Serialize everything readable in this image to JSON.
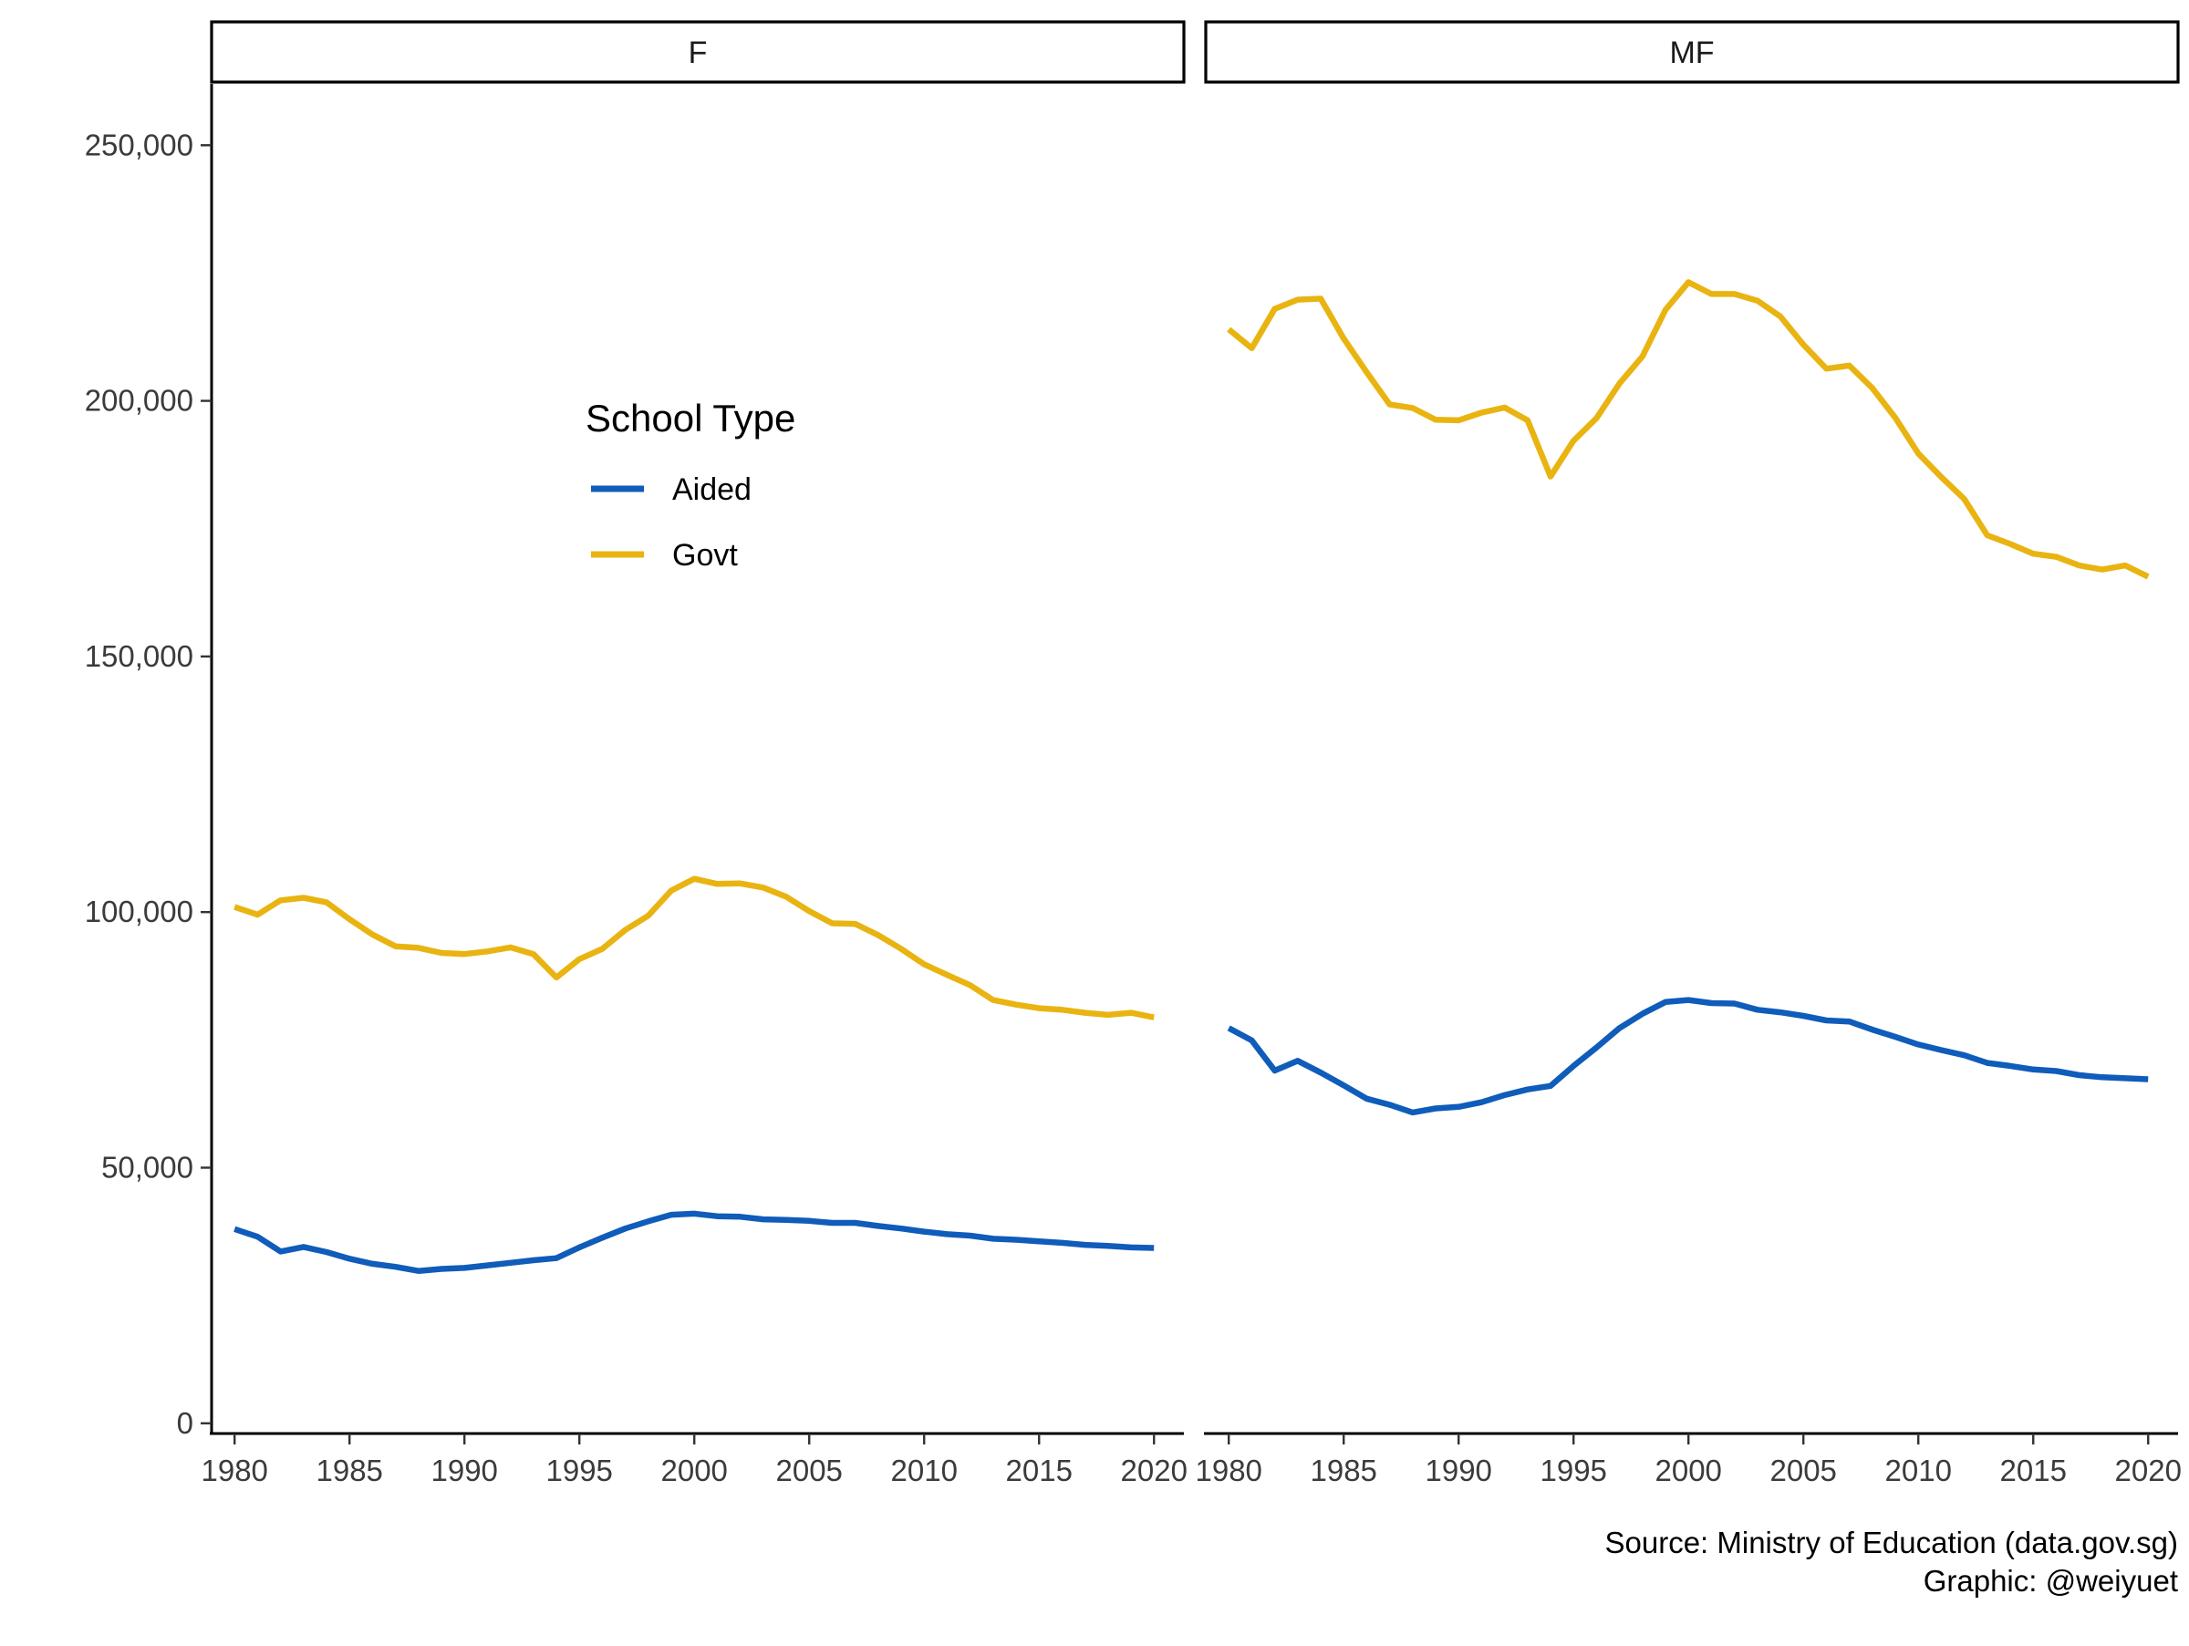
{
  "chart_data": {
    "type": "line",
    "facet_by": "sex",
    "panels": [
      {
        "label": "F",
        "series": [
          {
            "name": "Aided",
            "x": [
              1980,
              1981,
              1982,
              1983,
              1984,
              1985,
              1986,
              1987,
              1988,
              1989,
              1990,
              1991,
              1992,
              1993,
              1994,
              1995,
              1996,
              1997,
              1998,
              1999,
              2000,
              2001,
              2002,
              2003,
              2004,
              2005,
              2006,
              2007,
              2008,
              2009,
              2010,
              2011,
              2012,
              2013,
              2014,
              2015,
              2016,
              2017,
              2018,
              2019,
              2020
            ],
            "values": [
              38000,
              36500,
              33600,
              34500,
              33500,
              32200,
              31200,
              30600,
              29800,
              30200,
              30400,
              30900,
              31400,
              31900,
              32300,
              34400,
              36300,
              38100,
              39500,
              40800,
              41000,
              40500,
              40400,
              39900,
              39800,
              39600,
              39200,
              39200,
              38600,
              38100,
              37500,
              37000,
              36700,
              36100,
              35900,
              35600,
              35300,
              34900,
              34700,
              34400,
              34300
            ]
          },
          {
            "name": "Govt",
            "x": [
              1980,
              1981,
              1982,
              1983,
              1984,
              1985,
              1986,
              1987,
              1988,
              1989,
              1990,
              1991,
              1992,
              1993,
              1994,
              1995,
              1996,
              1997,
              1998,
              1999,
              2000,
              2001,
              2002,
              2003,
              2004,
              2005,
              2006,
              2007,
              2008,
              2009,
              2010,
              2011,
              2012,
              2013,
              2014,
              2015,
              2016,
              2017,
              2018,
              2019,
              2020
            ],
            "values": [
              101000,
              99500,
              102300,
              102800,
              101900,
              98600,
              95600,
              93300,
              93000,
              92000,
              91800,
              92300,
              93100,
              91800,
              87200,
              90800,
              92800,
              96500,
              99300,
              104200,
              106500,
              105500,
              105600,
              104800,
              103000,
              100200,
              97800,
              97700,
              95500,
              92800,
              89800,
              87700,
              85700,
              82800,
              81900,
              81200,
              80900,
              80300,
              79900,
              80300,
              79400
            ]
          }
        ]
      },
      {
        "label": "MF",
        "series": [
          {
            "name": "Aided",
            "x": [
              1980,
              1981,
              1982,
              1983,
              1984,
              1985,
              1986,
              1987,
              1988,
              1989,
              1990,
              1991,
              1992,
              1993,
              1994,
              1995,
              1996,
              1997,
              1998,
              1999,
              2000,
              2001,
              2002,
              2003,
              2004,
              2005,
              2006,
              2007,
              2008,
              2009,
              2010,
              2011,
              2012,
              2013,
              2014,
              2015,
              2016,
              2017,
              2018,
              2019,
              2020
            ],
            "values": [
              77300,
              74900,
              69000,
              70900,
              68600,
              66100,
              63500,
              62300,
              60800,
              61600,
              61900,
              62800,
              64200,
              65300,
              66000,
              69900,
              73500,
              77300,
              80100,
              82400,
              82800,
              82200,
              82100,
              80900,
              80400,
              79700,
              78800,
              78600,
              77000,
              75600,
              74100,
              73000,
              72000,
              70500,
              69900,
              69200,
              68900,
              68100,
              67700,
              67500,
              67300
            ]
          },
          {
            "name": "Govt",
            "x": [
              1980,
              1981,
              1982,
              1983,
              1984,
              1985,
              1986,
              1987,
              1988,
              1989,
              1990,
              1991,
              1992,
              1993,
              1994,
              1995,
              1996,
              1997,
              1998,
              1999,
              2000,
              2001,
              2002,
              2003,
              2004,
              2005,
              2006,
              2007,
              2008,
              2009,
              2010,
              2011,
              2012,
              2013,
              2014,
              2015,
              2016,
              2017,
              2018,
              2019,
              2020
            ],
            "values": [
              214000,
              210300,
              218000,
              219800,
              220000,
              212200,
              205600,
              199300,
              198600,
              196300,
              196200,
              197700,
              198700,
              196200,
              185200,
              192200,
              196600,
              203400,
              208700,
              217800,
              223200,
              220900,
              220900,
              219600,
              216500,
              211000,
              206300,
              206900,
              202500,
              196700,
              189700,
              185100,
              180800,
              173700,
              172000,
              170100,
              169500,
              167800,
              167000,
              167800,
              165600
            ]
          }
        ]
      }
    ],
    "x_ticks": [
      1980,
      1985,
      1990,
      1995,
      2000,
      2005,
      2010,
      2015,
      2020
    ],
    "y_ticks": [
      0,
      50000,
      100000,
      150000,
      200000,
      250000
    ],
    "y_tick_labels": [
      "0",
      "50,000",
      "100,000",
      "150,000",
      "200,000",
      "250,000"
    ],
    "xlim": [
      1979,
      2021.3
    ],
    "ylim": [
      -2000,
      262000
    ],
    "legend": {
      "title": "School Type",
      "placement": "inside-left-panel",
      "entries": [
        {
          "name": "Aided",
          "color": "#0f5cba"
        },
        {
          "name": "Govt",
          "color": "#e9b411"
        }
      ]
    },
    "caption": [
      "Source: Ministry of Education (data.gov.sg)",
      "Graphic: @weiyuet"
    ],
    "grid": false
  }
}
